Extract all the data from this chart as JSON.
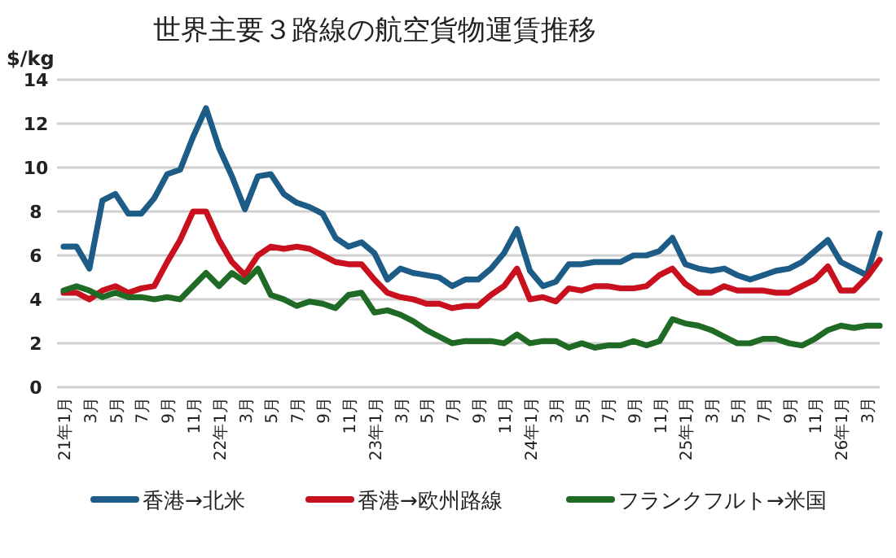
{
  "chart_data": {
    "type": "line",
    "title": "世界主要３路線の航空貨物運賃推移",
    "ylabel": "$/kg",
    "categories": [
      "21年1月",
      null,
      "3月",
      null,
      "5月",
      null,
      "7月",
      null,
      "9月",
      null,
      "11月",
      null,
      "22年1月",
      null,
      "3月",
      null,
      "5月",
      null,
      "7月",
      null,
      "9月",
      null,
      "11月",
      null,
      "23年1月",
      null,
      "3月",
      null,
      "5月",
      null,
      "7月",
      null,
      "9月",
      null,
      "11月",
      null,
      "24年1月",
      null,
      "3月",
      null,
      "5月",
      null,
      "7月",
      null,
      "9月",
      null,
      "11月",
      null,
      "25年1月",
      null,
      "3月",
      null,
      "5月",
      null,
      "7月",
      null,
      "9月",
      null,
      "11月",
      null,
      "26年1月",
      null,
      "3月",
      null
    ],
    "series": [
      {
        "name": "香港→北米",
        "color": "#1d5c87",
        "values": [
          6.4,
          6.4,
          5.4,
          8.5,
          8.8,
          7.9,
          7.9,
          8.6,
          9.7,
          9.9,
          11.4,
          12.7,
          10.9,
          9.6,
          8.1,
          9.6,
          9.7,
          8.8,
          8.4,
          8.2,
          7.9,
          6.8,
          6.4,
          6.6,
          6.1,
          4.9,
          5.4,
          5.2,
          5.1,
          5.0,
          4.6,
          4.9,
          4.9,
          5.4,
          6.1,
          7.2,
          5.3,
          4.6,
          4.8,
          5.6,
          5.6,
          5.7,
          5.7,
          5.7,
          6.0,
          6.0,
          6.2,
          6.8,
          5.6,
          5.4,
          5.3,
          5.4,
          5.1,
          4.9,
          5.1,
          5.3,
          5.4,
          5.7,
          6.2,
          6.7,
          5.7,
          5.4,
          5.1,
          7.0
        ]
      },
      {
        "name": "香港→欧州路線",
        "color": "#c8101e",
        "values": [
          4.3,
          4.3,
          4.0,
          4.4,
          4.6,
          4.3,
          4.5,
          4.6,
          5.7,
          6.7,
          8.0,
          8.0,
          6.7,
          5.7,
          5.1,
          6.0,
          6.4,
          6.3,
          6.4,
          6.3,
          6.0,
          5.7,
          5.6,
          5.6,
          4.9,
          4.3,
          4.1,
          4.0,
          3.8,
          3.8,
          3.6,
          3.7,
          3.7,
          4.2,
          4.6,
          5.4,
          4.0,
          4.1,
          3.9,
          4.5,
          4.4,
          4.6,
          4.6,
          4.5,
          4.5,
          4.6,
          5.1,
          5.4,
          4.7,
          4.3,
          4.3,
          4.6,
          4.4,
          4.4,
          4.4,
          4.3,
          4.3,
          4.6,
          4.9,
          5.5,
          4.4,
          4.4,
          5.0,
          5.8
        ]
      },
      {
        "name": "フランクフルト→米国",
        "color": "#1f6b25",
        "values": [
          4.4,
          4.6,
          4.4,
          4.1,
          4.3,
          4.1,
          4.1,
          4.0,
          4.1,
          4.0,
          4.6,
          5.2,
          4.6,
          5.2,
          4.8,
          5.4,
          4.2,
          4.0,
          3.7,
          3.9,
          3.8,
          3.6,
          4.2,
          4.3,
          3.4,
          3.5,
          3.3,
          3.0,
          2.6,
          2.3,
          2.0,
          2.1,
          2.1,
          2.1,
          2.0,
          2.4,
          2.0,
          2.1,
          2.1,
          1.8,
          2.0,
          1.8,
          1.9,
          1.9,
          2.1,
          1.9,
          2.1,
          3.1,
          2.9,
          2.8,
          2.6,
          2.3,
          2.0,
          2.0,
          2.2,
          2.2,
          2.0,
          1.9,
          2.2,
          2.6,
          2.8,
          2.7,
          2.8,
          2.8
        ]
      }
    ],
    "ylim": [
      0,
      14
    ],
    "yticks": [
      0,
      2,
      4,
      6,
      8,
      10,
      12,
      14
    ],
    "grid": "y",
    "legend": "bottom"
  }
}
